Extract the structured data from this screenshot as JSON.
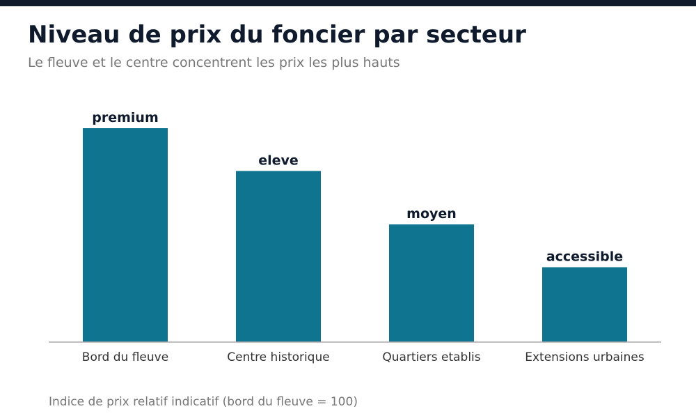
{
  "header": {
    "title": "Niveau de prix du foncier par secteur",
    "subtitle": "Le fleuve et le centre concentrent les prix les plus hauts"
  },
  "footnote": "Indice de prix relatif indicatif (bord du fleuve = 100)",
  "colors": {
    "top_bar": "#0f1b2d",
    "bar": "#0f7490",
    "title": "#0f1b2d",
    "muted_text": "#777777",
    "axis_line": "#aaaaaa",
    "tick_label": "#333333",
    "value_label": "#0f1b2d"
  },
  "chart_data": {
    "type": "bar",
    "categories": [
      "Bord du fleuve",
      "Centre historique",
      "Quartiers etablis",
      "Extensions urbaines"
    ],
    "values": [
      100,
      80,
      55,
      35
    ],
    "data_labels": [
      "premium",
      "eleve",
      "moyen",
      "accessible"
    ],
    "title": "Niveau de prix du foncier par secteur",
    "subtitle": "Le fleuve et le centre concentrent les prix les plus hauts",
    "xlabel": "",
    "ylabel": "",
    "ylim": [
      0,
      100
    ],
    "grid": false,
    "legend": "none"
  }
}
